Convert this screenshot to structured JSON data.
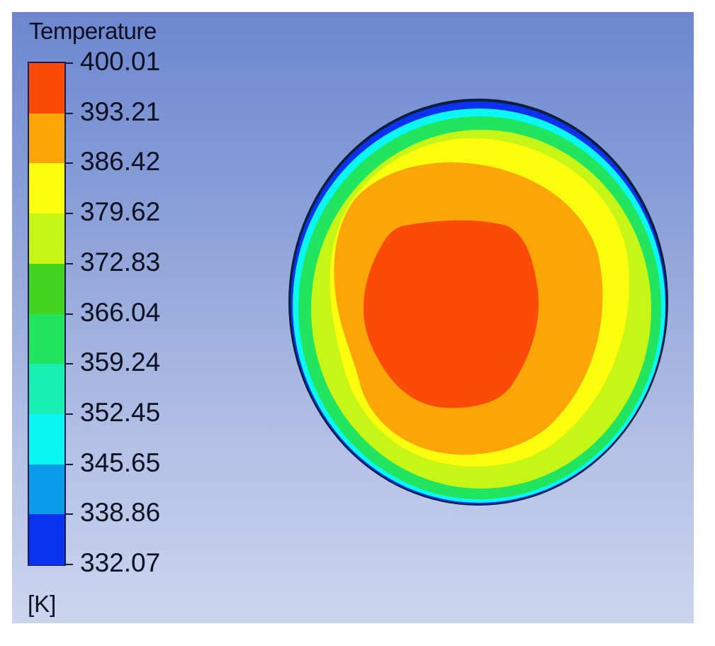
{
  "legend": {
    "title": "Temperature",
    "unit": "[K]",
    "tick_labels": [
      "400.01",
      "393.21",
      "386.42",
      "379.62",
      "372.83",
      "366.04",
      "359.24",
      "352.45",
      "345.65",
      "338.86",
      "332.07"
    ],
    "band_colors": [
      "#fa4c08",
      "#fca507",
      "#fdfe0d",
      "#c7f515",
      "#41d521",
      "#21e55f",
      "#17f0b2",
      "#0af7f4",
      "#0c9be9",
      "#0a32ef"
    ]
  },
  "contour": {
    "colors": {
      "outline": "#0d1f3c",
      "cold_edge": "#0a32ef",
      "cyan": "#0af7f4",
      "green": "#21e55f",
      "lime": "#c7f515",
      "yellow": "#fdfe0d",
      "orange": "#fca507",
      "red": "#fa4c08"
    }
  }
}
